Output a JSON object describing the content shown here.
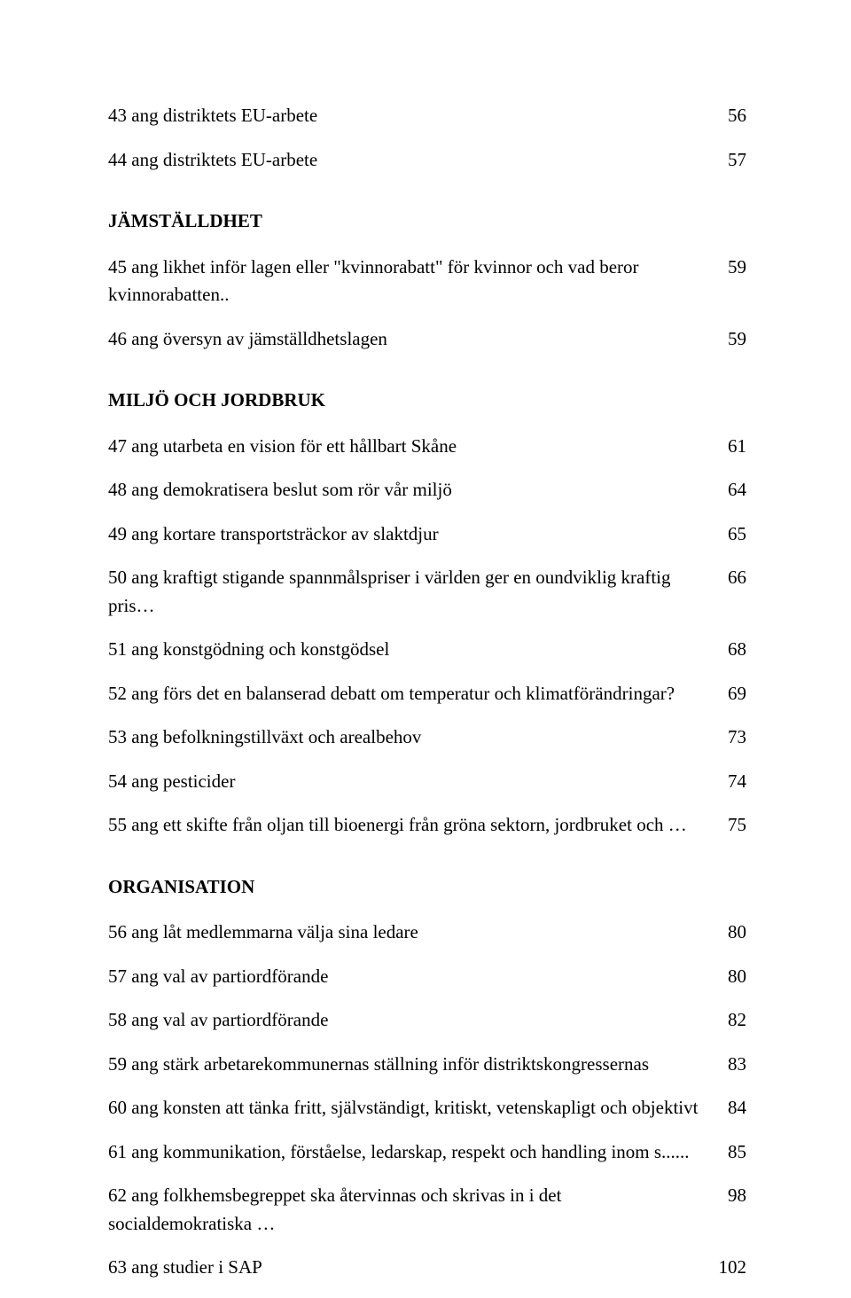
{
  "rows": [
    {
      "type": "entry",
      "label": "43 ang distriktets EU-arbete",
      "page": "56"
    },
    {
      "type": "entry",
      "label": "44 ang distriktets EU-arbete",
      "page": "57"
    },
    {
      "type": "section",
      "label": "JÄMSTÄLLDHET",
      "gapBefore": true
    },
    {
      "type": "entry",
      "label": "45 ang likhet inför lagen eller \"kvinnorabatt\" för kvinnor och vad beror kvinnorabatten..",
      "page": "59"
    },
    {
      "type": "entry",
      "label": "46 ang översyn av jämställdhetslagen",
      "page": "59"
    },
    {
      "type": "section",
      "label": "MILJÖ OCH JORDBRUK",
      "gapBefore": true
    },
    {
      "type": "entry",
      "label": "47 ang utarbeta en vision för ett hållbart Skåne",
      "page": "61"
    },
    {
      "type": "entry",
      "label": "48 ang demokratisera beslut som rör vår miljö",
      "page": "64"
    },
    {
      "type": "entry",
      "label": "49 ang kortare transportsträckor av slaktdjur",
      "page": "65"
    },
    {
      "type": "entry",
      "label": "50 ang kraftigt stigande spannmålspriser i världen ger en oundviklig kraftig pris…",
      "page": "66"
    },
    {
      "type": "entry",
      "label": "51 ang konstgödning och konstgödsel",
      "page": "68"
    },
    {
      "type": "entry",
      "label": "52 ang förs det en balanserad debatt om temperatur och klimatförändringar?",
      "page": "69"
    },
    {
      "type": "entry",
      "label": "53 ang befolkningstillväxt och arealbehov",
      "page": "73"
    },
    {
      "type": "entry",
      "label": "54 ang pesticider",
      "page": "74"
    },
    {
      "type": "entry",
      "label": "55 ang ett skifte från oljan till bioenergi från gröna sektorn, jordbruket och …",
      "page": "75"
    },
    {
      "type": "section",
      "label": "ORGANISATION",
      "gapBefore": true
    },
    {
      "type": "entry",
      "label": "56 ang låt medlemmarna välja sina ledare",
      "page": "80"
    },
    {
      "type": "entry",
      "label": "57 ang val av partiordförande",
      "page": "80"
    },
    {
      "type": "entry",
      "label": "58 ang val av partiordförande",
      "page": "82"
    },
    {
      "type": "entry",
      "label": "59 ang stärk arbetarekommunernas ställning inför distriktskongressernas",
      "page": "83"
    },
    {
      "type": "entry",
      "label": "60 ang konsten att tänka fritt, självständigt, kritiskt, vetenskapligt och objektivt",
      "page": "84"
    },
    {
      "type": "entry",
      "label": "61 ang kommunikation, förståelse, ledarskap, respekt och handling inom s......",
      "page": "85"
    },
    {
      "type": "entry",
      "label": "62 ang folkhemsbegreppet ska återvinnas och skrivas in i det socialdemokratiska …",
      "page": "98"
    },
    {
      "type": "entry",
      "label": "63 ang studier i SAP",
      "page": "102"
    }
  ]
}
